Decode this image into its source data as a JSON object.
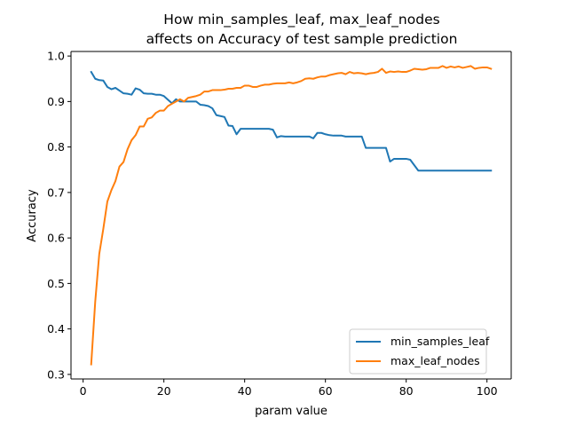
{
  "chart_data": {
    "type": "line",
    "title": "How min_samples_leaf, max_leaf_nodes\naffects on Accuracy of test sample prediction",
    "title_lines": [
      "How min_samples_leaf, max_leaf_nodes",
      "affects on Accuracy of test sample prediction"
    ],
    "xlabel": "param value",
    "ylabel": "Accuracy",
    "xlim": [
      -3,
      106
    ],
    "ylim": [
      0.29,
      1.01
    ],
    "xticks": [
      0,
      20,
      40,
      60,
      80,
      100
    ],
    "yticks": [
      0.3,
      0.4,
      0.5,
      0.6,
      0.7,
      0.8,
      0.9,
      1.0
    ],
    "ytick_labels": [
      "0.3",
      "0.4",
      "0.5",
      "0.6",
      "0.7",
      "0.8",
      "0.9",
      "1.0"
    ],
    "grid": false,
    "legend_position": "lower-right",
    "x": [
      2,
      3,
      4,
      5,
      6,
      7,
      8,
      9,
      10,
      11,
      12,
      13,
      14,
      15,
      16,
      17,
      18,
      19,
      20,
      21,
      22,
      23,
      24,
      25,
      26,
      27,
      28,
      29,
      30,
      31,
      32,
      33,
      34,
      35,
      36,
      37,
      38,
      39,
      40,
      41,
      42,
      43,
      44,
      45,
      46,
      47,
      48,
      49,
      50,
      51,
      52,
      53,
      54,
      55,
      56,
      57,
      58,
      59,
      60,
      61,
      62,
      63,
      64,
      65,
      66,
      67,
      68,
      69,
      70,
      71,
      72,
      73,
      74,
      75,
      76,
      77,
      78,
      79,
      80,
      81,
      82,
      83,
      84,
      85,
      86,
      87,
      88,
      89,
      90,
      91,
      92,
      93,
      94,
      95,
      96,
      97,
      98,
      99,
      100,
      101
    ],
    "series": [
      {
        "name": "min_samples_leaf",
        "color": "#1f77b4",
        "values": [
          0.965,
          0.95,
          0.947,
          0.946,
          0.932,
          0.927,
          0.93,
          0.924,
          0.918,
          0.917,
          0.915,
          0.929,
          0.926,
          0.918,
          0.917,
          0.917,
          0.915,
          0.915,
          0.912,
          0.904,
          0.896,
          0.905,
          0.9,
          0.9,
          0.9,
          0.9,
          0.9,
          0.893,
          0.892,
          0.89,
          0.885,
          0.87,
          0.868,
          0.866,
          0.847,
          0.846,
          0.828,
          0.84,
          0.84,
          0.84,
          0.84,
          0.84,
          0.84,
          0.84,
          0.84,
          0.838,
          0.821,
          0.824,
          0.823,
          0.823,
          0.823,
          0.823,
          0.823,
          0.823,
          0.823,
          0.819,
          0.831,
          0.831,
          0.828,
          0.826,
          0.825,
          0.825,
          0.825,
          0.823,
          0.823,
          0.823,
          0.823,
          0.823,
          0.798,
          0.798,
          0.798,
          0.798,
          0.798,
          0.798,
          0.768,
          0.774,
          0.774,
          0.774,
          0.774,
          0.772,
          0.76,
          0.748,
          0.748,
          0.748,
          0.748,
          0.748,
          0.748,
          0.748,
          0.748,
          0.748,
          0.748,
          0.748,
          0.748,
          0.748,
          0.748,
          0.748,
          0.748,
          0.748,
          0.748,
          0.748
        ]
      },
      {
        "name": "max_leaf_nodes",
        "color": "#ff7f0e",
        "values": [
          0.322,
          0.46,
          0.565,
          0.62,
          0.68,
          0.705,
          0.725,
          0.757,
          0.767,
          0.795,
          0.815,
          0.826,
          0.845,
          0.845,
          0.862,
          0.865,
          0.875,
          0.88,
          0.88,
          0.89,
          0.895,
          0.9,
          0.905,
          0.9,
          0.908,
          0.91,
          0.912,
          0.915,
          0.922,
          0.922,
          0.925,
          0.925,
          0.925,
          0.926,
          0.928,
          0.928,
          0.93,
          0.93,
          0.935,
          0.935,
          0.932,
          0.932,
          0.935,
          0.937,
          0.937,
          0.939,
          0.94,
          0.94,
          0.94,
          0.942,
          0.94,
          0.942,
          0.945,
          0.95,
          0.951,
          0.95,
          0.953,
          0.955,
          0.955,
          0.958,
          0.96,
          0.962,
          0.963,
          0.96,
          0.965,
          0.962,
          0.963,
          0.962,
          0.96,
          0.962,
          0.963,
          0.965,
          0.972,
          0.963,
          0.966,
          0.965,
          0.966,
          0.965,
          0.965,
          0.968,
          0.972,
          0.971,
          0.97,
          0.971,
          0.974,
          0.974,
          0.974,
          0.978,
          0.974,
          0.977,
          0.975,
          0.977,
          0.974,
          0.976,
          0.978,
          0.972,
          0.974,
          0.975,
          0.975,
          0.972
        ]
      }
    ]
  }
}
